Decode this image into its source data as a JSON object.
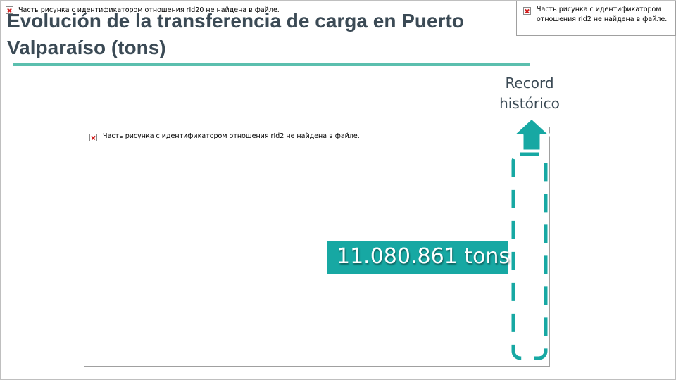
{
  "slide": {
    "title": "Evolución de la transferencia de carga en Puerto Valparaíso (tons)",
    "accent_color": "#5bbfae",
    "title_color": "#3b4a55"
  },
  "missing_images": {
    "top_left": "Часть рисунка с идентификатором отношения rId20 не найдена в файле.",
    "top_right": "Часть рисунка с идентификатором отношения rId2 не найдена в файле.",
    "chart_area": "Часть рисунка с идентификатором отношения rId2 не найдена в файле."
  },
  "callout": {
    "record_label": "Record histórico",
    "value_label": "11.080.861 tons",
    "box_color": "#17a8a3",
    "highlight_color": "#17a8a3"
  }
}
